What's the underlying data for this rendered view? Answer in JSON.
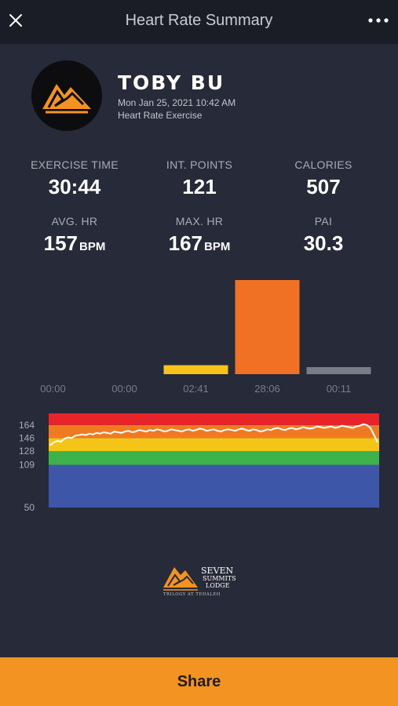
{
  "header": {
    "title": "Heart Rate Summary"
  },
  "user": {
    "name": "TOBY BU",
    "date": "Mon Jan 25, 2021 10:42 AM",
    "activity": "Heart Rate Exercise"
  },
  "stats": {
    "exercise_time": {
      "label": "EXERCISE TIME",
      "value": "30:44"
    },
    "int_points": {
      "label": "INT. POINTS",
      "value": "121"
    },
    "calories": {
      "label": "CALORIES",
      "value": "507"
    },
    "avg_hr": {
      "label": "AVG. HR",
      "value": "157",
      "unit": "BPM"
    },
    "max_hr": {
      "label": "MAX. HR",
      "value": "167",
      "unit": "BPM"
    },
    "pai": {
      "label": "PAI",
      "value": "30.3"
    }
  },
  "chart_data": [
    {
      "type": "bar",
      "categories": [
        "00:00",
        "00:00",
        "02:41",
        "28:06",
        "00:11"
      ],
      "values": [
        0,
        0,
        161,
        1686,
        11
      ],
      "colors": [
        "#7a7d88",
        "#7a7d88",
        "#f6c21c",
        "#f07124",
        "#7a7d88"
      ],
      "title": "",
      "ylim": [
        0,
        1686
      ]
    },
    {
      "type": "area",
      "bands": [
        {
          "from": 50,
          "to": 109,
          "color": "#3e56a8"
        },
        {
          "from": 109,
          "to": 128,
          "color": "#3db24a"
        },
        {
          "from": 128,
          "to": 146,
          "color": "#f5c419"
        },
        {
          "from": 146,
          "to": 164,
          "color": "#f07a22"
        },
        {
          "from": 164,
          "to": 180,
          "color": "#e8232a"
        }
      ],
      "y_ticks": [
        "164",
        "146",
        "128",
        "109",
        "50"
      ],
      "ylim": [
        50,
        180
      ],
      "series": [
        {
          "values": [
            136,
            140,
            142,
            141,
            145,
            147,
            146,
            149,
            150,
            151,
            150,
            152,
            151,
            153,
            152,
            154,
            153,
            152,
            155,
            154,
            153,
            155,
            156,
            154,
            155,
            157,
            156,
            155,
            157,
            156,
            158,
            157,
            155,
            156,
            158,
            157,
            156,
            155,
            157,
            158,
            156,
            157,
            159,
            158,
            156,
            157,
            158,
            156,
            155,
            157,
            158,
            157,
            156,
            158,
            159,
            157,
            156,
            158,
            157,
            155,
            156,
            158,
            157,
            159,
            160,
            158,
            157,
            159,
            160,
            158,
            159,
            161,
            160,
            159,
            160,
            162,
            161,
            160,
            161,
            162,
            160,
            161,
            163,
            162,
            161,
            160,
            162,
            163,
            165,
            164,
            160,
            150,
            140
          ],
          "color": "#ffffff"
        }
      ]
    }
  ],
  "brand": {
    "name_line1": "SEVEN",
    "name_line2": "SUMMITS",
    "name_line3": "LODGE",
    "tagline": "TRILOGY AT TEHALEH"
  },
  "share_label": "Share",
  "icons": {
    "close": "close-icon",
    "more": "more-icon",
    "avatar": "mountain-logo-icon"
  }
}
